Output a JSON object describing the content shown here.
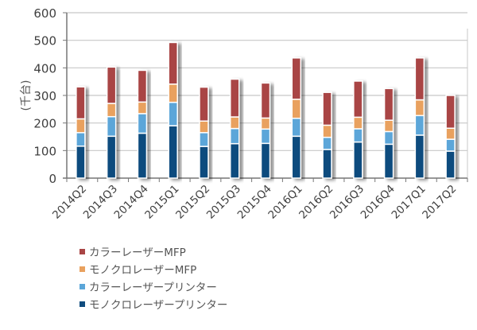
{
  "chart_data": {
    "type": "bar",
    "stacked": true,
    "title": "",
    "xlabel": "",
    "ylabel": "(千台)",
    "ylim": [
      0,
      600
    ],
    "yticks": [
      0,
      100,
      200,
      300,
      400,
      500,
      600
    ],
    "grid": true,
    "legend_position": "bottom-left",
    "categories": [
      "2014Q2",
      "2014Q3",
      "2014Q4",
      "2015Q1",
      "2015Q2",
      "2015Q3",
      "2015Q4",
      "2016Q1",
      "2016Q2",
      "2016Q3",
      "2016Q4",
      "2017Q1",
      "2017Q2"
    ],
    "series": [
      {
        "name": "モノクロレーザープリンター",
        "color": "#0f4c7e",
        "values": [
          116,
          152,
          163,
          190,
          115,
          125,
          126,
          152,
          104,
          131,
          123,
          156,
          98
        ]
      },
      {
        "name": "カラーレーザープリンター",
        "color": "#5ba6d9",
        "values": [
          49,
          71,
          71,
          85,
          50,
          55,
          52,
          65,
          44,
          48,
          46,
          71,
          43
        ]
      },
      {
        "name": "モノクロレーザーMFP",
        "color": "#e9a15e",
        "values": [
          50,
          48,
          42,
          66,
          42,
          42,
          40,
          69,
          44,
          42,
          41,
          57,
          40
        ]
      },
      {
        "name": "カラーレーザーMFP",
        "color": "#a94545",
        "values": [
          116,
          132,
          115,
          151,
          123,
          137,
          127,
          150,
          119,
          131,
          115,
          152,
          119
        ]
      }
    ],
    "legend_order": [
      "カラーレーザーMFP",
      "モノクロレーザーMFP",
      "カラーレーザープリンター",
      "モノクロレーザープリンター"
    ]
  }
}
